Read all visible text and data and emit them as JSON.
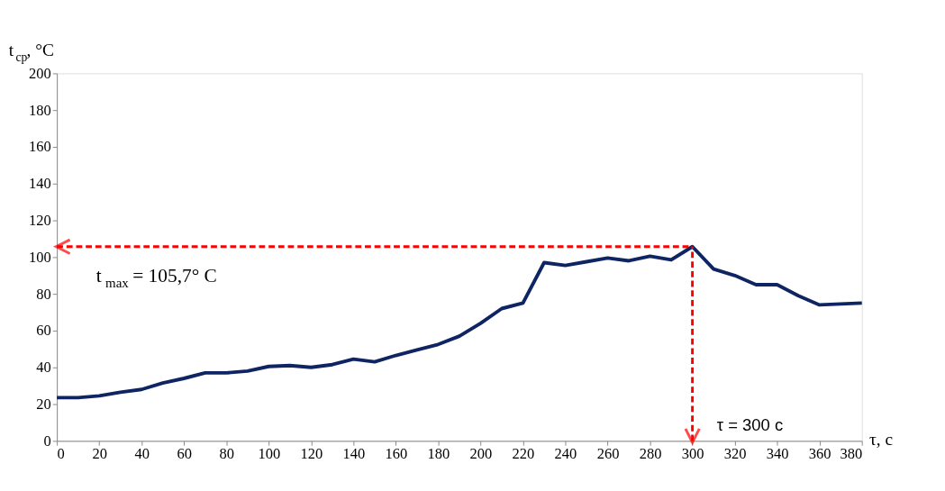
{
  "chart_data": {
    "type": "line",
    "xlabel": "τ, с",
    "ylabel": "t$_{cp}$, °C",
    "x": [
      0,
      10,
      20,
      30,
      40,
      50,
      60,
      70,
      80,
      90,
      100,
      110,
      120,
      130,
      140,
      150,
      160,
      170,
      180,
      190,
      200,
      210,
      220,
      230,
      240,
      250,
      260,
      270,
      280,
      290,
      300,
      310,
      320,
      330,
      340,
      350,
      360,
      370,
      380
    ],
    "series": [
      {
        "color": "#0f2563",
        "values": [
          23.5,
          23.5,
          24.5,
          26.5,
          28,
          31.5,
          34,
          37,
          37,
          38,
          40.5,
          41,
          40,
          41.5,
          44.5,
          43,
          46.5,
          49.5,
          52.5,
          57,
          64,
          72,
          75,
          97,
          95.5,
          97.5,
          99.5,
          98,
          100.5,
          98.5,
          105.7,
          93.5,
          90,
          85,
          85,
          79,
          74,
          74.5,
          75
        ]
      }
    ],
    "xlim": [
      0,
      380
    ],
    "xticks": [
      0,
      20,
      40,
      60,
      80,
      100,
      120,
      140,
      160,
      180,
      200,
      220,
      240,
      260,
      280,
      300,
      320,
      340,
      360,
      380
    ],
    "ylim": [
      0,
      200
    ],
    "yticks": [
      0,
      20,
      40,
      60,
      80,
      100,
      120,
      140,
      160,
      180,
      200
    ],
    "grid": false,
    "marker": "none",
    "line_style": "solid",
    "ref_lines": [
      {
        "axis": "y",
        "value": 105.7,
        "label": "t$_{max}$ = 105,7° C",
        "color": "#ff0000",
        "line_style": "dashed"
      },
      {
        "axis": "x",
        "value": 300,
        "label": "τ = 300 с",
        "color": "#ff0000",
        "line_style": "dashed"
      }
    ]
  }
}
